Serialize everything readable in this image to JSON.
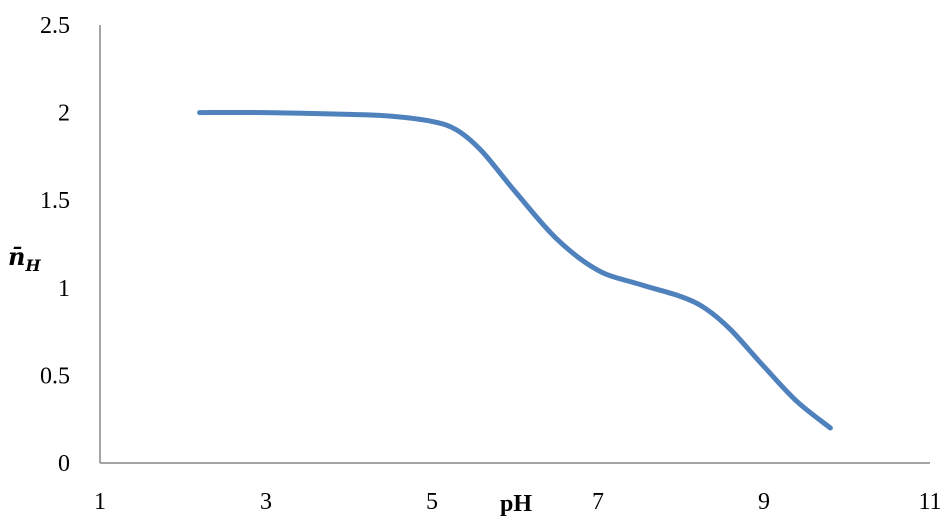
{
  "chart_data": {
    "type": "line",
    "xlabel": "pH",
    "ylabel": "n̄",
    "ylabel_subscript": "H",
    "xlim": [
      1,
      11
    ],
    "ylim": [
      0,
      2.5
    ],
    "xticks": [
      "1",
      "3",
      "5",
      "7",
      "9",
      "11"
    ],
    "yticks": [
      "0",
      "0.5",
      "1",
      "1.5",
      "2",
      "2.5"
    ],
    "grid": false,
    "line_color": "#4f81bd",
    "series": [
      {
        "x": [
          2.2,
          3.0,
          4.0,
          4.5,
          5.0,
          5.3,
          5.6,
          6.0,
          6.5,
          7.0,
          7.5,
          8.0,
          8.3,
          8.6,
          9.0,
          9.4,
          9.8
        ],
        "y": [
          2.0,
          2.0,
          1.99,
          1.98,
          1.95,
          1.9,
          1.78,
          1.55,
          1.28,
          1.1,
          1.02,
          0.95,
          0.88,
          0.76,
          0.55,
          0.35,
          0.2
        ]
      }
    ]
  }
}
